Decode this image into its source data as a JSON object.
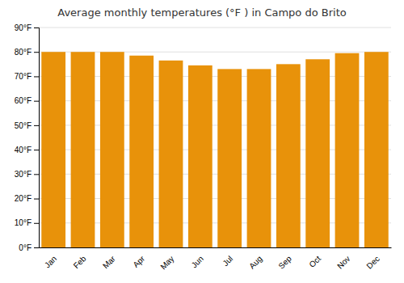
{
  "chart_data": {
    "type": "bar",
    "title": "Average monthly temperatures (°F ) in Campo do Brito",
    "categories": [
      "Jan",
      "Feb",
      "Mar",
      "Apr",
      "May",
      "Jun",
      "Jul",
      "Aug",
      "Sep",
      "Oct",
      "Nov",
      "Dec"
    ],
    "values": [
      80.0,
      80.0,
      80.0,
      78.5,
      76.5,
      74.5,
      73.0,
      73.0,
      75.0,
      77.0,
      79.5,
      80.0
    ],
    "color": "#E8920A",
    "ylim": [
      0,
      90
    ],
    "yticks": [
      {
        "value": 0,
        "label": "0°F"
      },
      {
        "value": 10,
        "label": "10°F"
      },
      {
        "value": 20,
        "label": "20°F"
      },
      {
        "value": 30,
        "label": "30°F"
      },
      {
        "value": 40,
        "label": "40°F"
      },
      {
        "value": 50,
        "label": "50°F"
      },
      {
        "value": 60,
        "label": "60°F"
      },
      {
        "value": 70,
        "label": "70°F"
      },
      {
        "value": 80,
        "label": "80°F"
      },
      {
        "value": 90,
        "label": "90°F"
      }
    ],
    "grid": true
  }
}
